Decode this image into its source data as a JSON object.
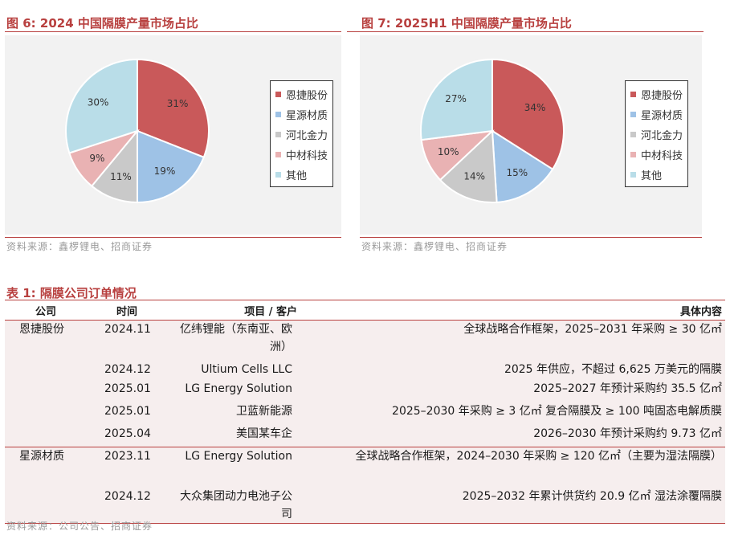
{
  "figures": [
    {
      "title": "图 6:  2024 中国隔膜产量市场占比",
      "source": "资料来源：鑫椤锂电、招商证券",
      "chart_data": {
        "type": "pie",
        "categories": [
          "恩捷股份",
          "星源材质",
          "河北金力",
          "中材科技",
          "其他"
        ],
        "values": [
          31,
          19,
          11,
          9,
          30
        ],
        "labels": [
          "31%",
          "19%",
          "11%",
          "9%",
          "30%"
        ],
        "colors": [
          "#c9595a",
          "#9ec2e6",
          "#c9c9c9",
          "#e9b2b3",
          "#b9dde8"
        ],
        "legend_position": "right"
      }
    },
    {
      "title": "图 7:  2025H1 中国隔膜产量市场占比",
      "source": "资料来源：鑫椤锂电、招商证券",
      "chart_data": {
        "type": "pie",
        "categories": [
          "恩捷股份",
          "星源材质",
          "河北金力",
          "中材科技",
          "其他"
        ],
        "values": [
          34,
          15,
          14,
          10,
          27
        ],
        "labels": [
          "34%",
          "15%",
          "14%",
          "10%",
          "27%"
        ],
        "colors": [
          "#c9595a",
          "#9ec2e6",
          "#c9c9c9",
          "#e9b2b3",
          "#b9dde8"
        ],
        "legend_position": "right"
      }
    }
  ],
  "table": {
    "title": "表 1:  隔膜公司订单情况",
    "headers": [
      "公司",
      "时间",
      "项目 / 客户",
      "具体内容"
    ],
    "rows": [
      [
        "恩捷股份",
        "2024.11",
        "亿纬锂能（东南亚、欧洲）",
        "全球战略合作框架，2025–2031 年采购 ≥ 30 亿㎡"
      ],
      [
        "",
        "2024.12",
        "Ultium Cells LLC",
        "2025 年供应，不超过 6,625 万美元的隔膜"
      ],
      [
        "",
        "2025.01",
        "LG Energy Solution",
        "2025–2027 年预计采购约 35.5 亿㎡"
      ],
      [
        "",
        "2025.01",
        "卫蓝新能源",
        "2025–2030 年采购 ≥ 3 亿㎡ 复合隔膜及 ≥ 100 吨固态电解质膜"
      ],
      [
        "",
        "2025.04",
        "美国某车企",
        "2026–2030 年预计采购约 9.73 亿㎡"
      ],
      [
        "星源材质",
        "2023.11",
        "LG Energy Solution",
        "全球战略合作框架，2024–2030 年采购 ≥ 120 亿㎡（主要为湿法隔膜）"
      ],
      [
        "",
        "2024.12",
        "大众集团动力电池子公司",
        "2025–2032 年累计供货约 20.9 亿㎡ 湿法涂覆隔膜"
      ]
    ],
    "source": "资料来源：公司公告、招商证券"
  }
}
